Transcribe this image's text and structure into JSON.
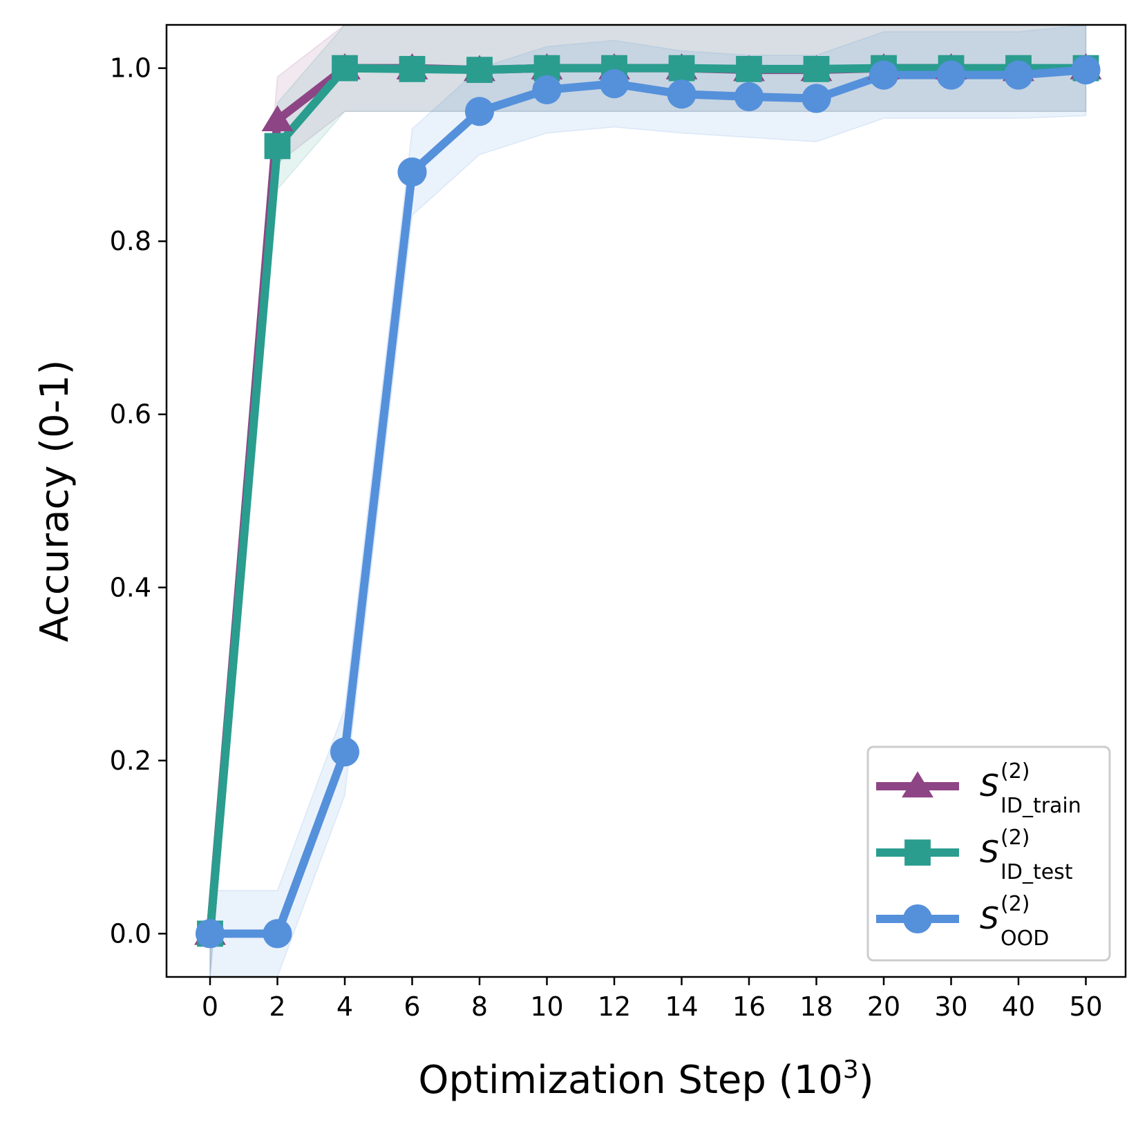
{
  "chart_data": {
    "type": "line",
    "xlabel": "Optimization Step (10",
    "xlabel_sup": "3",
    "xlabel_end": ")",
    "ylabel": "Accuracy (0-1)",
    "ylim": [
      -0.05,
      1.05
    ],
    "x_ticks": [
      "0",
      "2",
      "4",
      "6",
      "8",
      "10",
      "12",
      "14",
      "16",
      "18",
      "20",
      "30",
      "40",
      "50"
    ],
    "y_ticks": [
      "0.0",
      "0.2",
      "0.4",
      "0.6",
      "0.8",
      "1.0"
    ],
    "y_tick_values": [
      0.0,
      0.2,
      0.4,
      0.6,
      0.8,
      1.0
    ],
    "legend_position": "lower-right",
    "series": [
      {
        "key": "id_train",
        "name": "S",
        "name_sup": "(2)",
        "name_sub": "ID_train",
        "color": "#8e4585",
        "marker": "triangle",
        "values": [
          0.0,
          0.94,
          1.0,
          1.0,
          0.998,
          1.0,
          1.0,
          1.0,
          0.998,
          0.998,
          1.0,
          1.0,
          0.998,
          1.0
        ],
        "lower": [
          -0.05,
          0.89,
          0.95,
          0.95,
          0.95,
          0.95,
          0.95,
          0.95,
          0.95,
          0.95,
          0.95,
          0.95,
          0.95,
          0.95
        ],
        "upper": [
          0.05,
          0.99,
          1.05,
          1.05,
          1.05,
          1.05,
          1.05,
          1.05,
          1.05,
          1.05,
          1.05,
          1.05,
          1.05,
          1.05
        ]
      },
      {
        "key": "id_test",
        "name": "S",
        "name_sup": "(2)",
        "name_sub": "ID_test",
        "color": "#2a9d8f",
        "marker": "square",
        "values": [
          0.0,
          0.91,
          1.0,
          0.999,
          0.998,
          1.0,
          1.0,
          1.0,
          0.999,
          0.999,
          1.0,
          1.0,
          1.0,
          1.0
        ],
        "lower": [
          -0.05,
          0.86,
          0.95,
          0.95,
          0.95,
          0.95,
          0.95,
          0.95,
          0.95,
          0.95,
          0.95,
          0.95,
          0.95,
          0.95
        ],
        "upper": [
          0.05,
          0.96,
          1.05,
          1.05,
          1.05,
          1.05,
          1.05,
          1.05,
          1.05,
          1.05,
          1.05,
          1.05,
          1.05,
          1.05
        ]
      },
      {
        "key": "ood",
        "name": "S",
        "name_sup": "(2)",
        "name_sub": "OOD",
        "color": "#5590db",
        "marker": "circle",
        "values": [
          0.0,
          0.0,
          0.21,
          0.88,
          0.95,
          0.975,
          0.982,
          0.97,
          0.967,
          0.965,
          0.992,
          0.992,
          0.992,
          0.998
        ],
        "lower": [
          -0.05,
          -0.05,
          0.16,
          0.83,
          0.9,
          0.925,
          0.932,
          0.925,
          0.92,
          0.915,
          0.942,
          0.942,
          0.942,
          0.945
        ],
        "upper": [
          0.05,
          0.05,
          0.26,
          0.93,
          1.0,
          1.025,
          1.032,
          1.02,
          1.015,
          1.015,
          1.042,
          1.042,
          1.042,
          1.05
        ]
      }
    ]
  }
}
